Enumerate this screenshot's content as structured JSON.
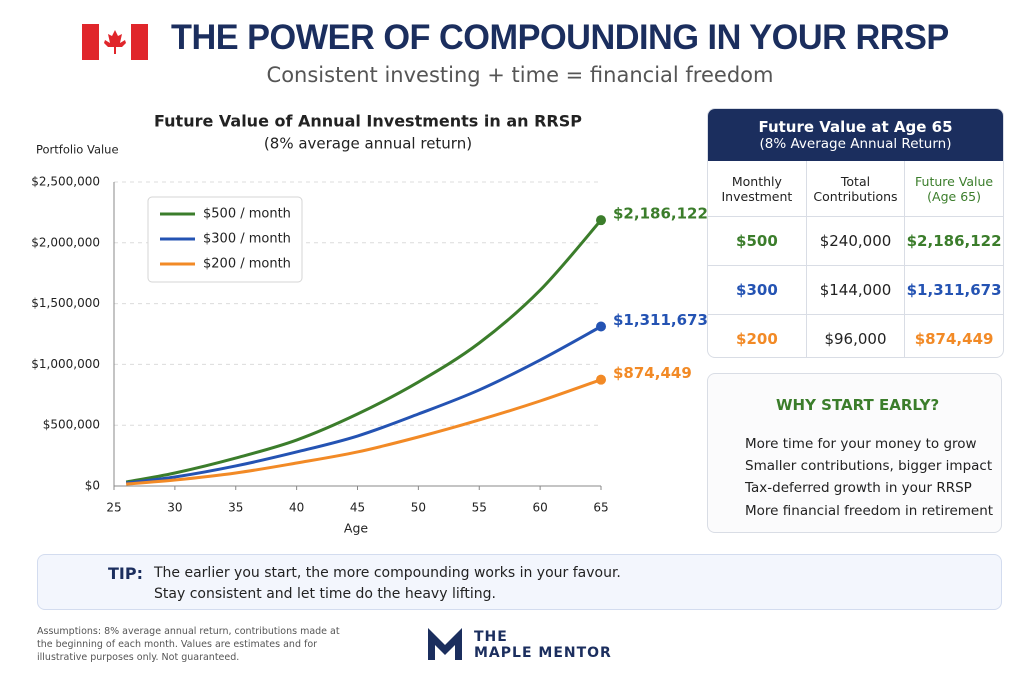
{
  "header": {
    "title": "THE POWER OF COMPOUNDING IN YOUR RRSP",
    "subtitle": "Consistent investing + time = financial freedom"
  },
  "chart_data": {
    "type": "line",
    "title": "Future Value of Annual Investments in an RRSP",
    "subtitle": "(8% average annual return)",
    "y_label": "Portfolio Value",
    "x_label": "Age",
    "x": [
      26,
      30,
      35,
      40,
      45,
      50,
      55,
      60,
      65
    ],
    "series": [
      {
        "name": "$500 / month",
        "color": "#3b7d2b",
        "values": [
          33000,
          107000,
          230000,
          378000,
          592000,
          855000,
          1176000,
          1610000,
          2186122
        ],
        "value_labels": [
          null,
          null,
          null,
          null,
          null,
          null,
          null,
          null,
          "$2,186,122"
        ]
      },
      {
        "name": "$300 / month",
        "color": "#2453b3",
        "values": [
          25000,
          74000,
          165000,
          280000,
          411000,
          592000,
          790000,
          1036000,
          1311673
        ],
        "value_labels": [
          null,
          null,
          null,
          null,
          null,
          null,
          null,
          null,
          "$1,311,673"
        ]
      },
      {
        "name": "$200 / month",
        "color": "#f28a26",
        "values": [
          16000,
          49000,
          107000,
          189000,
          280000,
          403000,
          543000,
          699000,
          874449
        ],
        "value_labels": [
          null,
          null,
          null,
          null,
          null,
          null,
          null,
          null,
          "$874,449"
        ]
      }
    ],
    "xlim": [
      25,
      65
    ],
    "xticks": [
      25,
      30,
      35,
      40,
      45,
      50,
      55,
      60,
      65
    ],
    "ylim": [
      0,
      2500000
    ],
    "yticks": [
      {
        "value": 0,
        "label": "$0"
      },
      {
        "value": 500000,
        "label": "$500,000"
      },
      {
        "value": 1000000,
        "label": "$1,000,000"
      },
      {
        "value": 1500000,
        "label": "$1,500,000"
      },
      {
        "value": 2000000,
        "label": "$2,000,000"
      },
      {
        "value": 2500000,
        "label": "$2,500,000"
      }
    ],
    "grid": true,
    "legend": "upper left"
  },
  "table": {
    "title": "Future Value at Age 65",
    "subtitle": "(8% Average Annual Return)",
    "columns": [
      "Monthly Investment",
      "Total Contributions",
      "Future Value (Age 65)"
    ],
    "rows": [
      [
        "$500",
        "$240,000",
        "$2,186,122"
      ],
      [
        "$300",
        "$144,000",
        "$1,311,673"
      ],
      [
        "$200",
        "$96,000",
        "$874,449"
      ]
    ]
  },
  "why": {
    "title": "WHY START EARLY?",
    "items": [
      "More time for your money to grow",
      "Smaller contributions, bigger impact",
      "Tax-deferred growth in your RRSP",
      "More financial freedom in retirement"
    ]
  },
  "tip": {
    "label": "TIP:",
    "lines": [
      "The earlier you start, the more compounding works in your favour.",
      "Stay consistent and let time do the heavy lifting."
    ]
  },
  "footer": {
    "note": "Assumptions: 8% average annual return, contributions made at the beginning of each month. Values are estimates and for illustrative purposes only. Not guaranteed.",
    "brand_top": "THE",
    "brand_bottom": "MAPLE MENTOR"
  }
}
